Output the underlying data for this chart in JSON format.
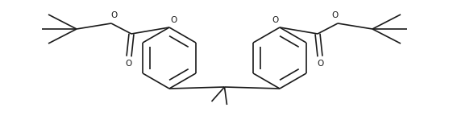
{
  "bg_color": "#ffffff",
  "line_color": "#1a1a1a",
  "line_width": 1.2,
  "figsize": [
    5.57,
    1.44
  ],
  "dpi": 100,
  "xlim": [
    0,
    557
  ],
  "ylim": [
    0,
    144
  ]
}
